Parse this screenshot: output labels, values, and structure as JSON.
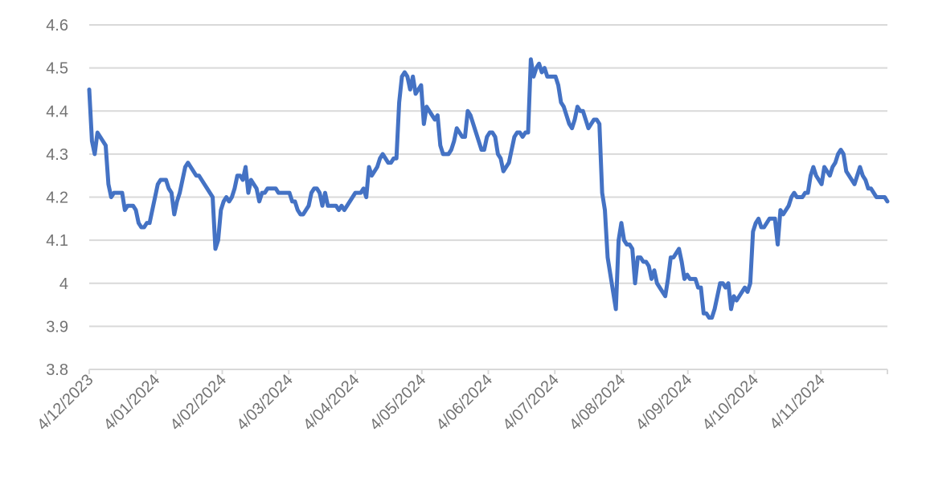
{
  "chart_data": {
    "type": "line",
    "title": "",
    "xlabel": "",
    "ylabel": "",
    "ylim": [
      3.8,
      4.6
    ],
    "y_ticks": [
      "3.8",
      "3.9",
      "4",
      "4.1",
      "4.2",
      "4.3",
      "4.4",
      "4.5",
      "4.6"
    ],
    "x_ticks": [
      "4/12/2023",
      "4/01/2024",
      "4/02/2024",
      "4/03/2024",
      "4/04/2024",
      "4/05/2024",
      "4/06/2024",
      "4/07/2024",
      "4/08/2024",
      "4/09/2024",
      "4/10/2024",
      "4/11/2024"
    ],
    "grid": "horizontal",
    "legend": "none",
    "color": "#4472c4",
    "series": [
      {
        "values": [
          4.45,
          4.33,
          4.3,
          4.35,
          4.34,
          4.33,
          4.32,
          4.23,
          4.2,
          4.21,
          4.21,
          4.21,
          4.21,
          4.17,
          4.18,
          4.18,
          4.18,
          4.17,
          4.14,
          4.13,
          4.13,
          4.14,
          4.14,
          4.17,
          4.2,
          4.23,
          4.24,
          4.24,
          4.24,
          4.22,
          4.21,
          4.16,
          4.19,
          4.21,
          4.24,
          4.27,
          4.28,
          4.27,
          4.26,
          4.25,
          4.25,
          4.24,
          4.23,
          4.22,
          4.21,
          4.2,
          4.08,
          4.1,
          4.17,
          4.19,
          4.2,
          4.19,
          4.2,
          4.22,
          4.25,
          4.25,
          4.24,
          4.27,
          4.21,
          4.24,
          4.23,
          4.22,
          4.19,
          4.21,
          4.21,
          4.22,
          4.22,
          4.22,
          4.22,
          4.21,
          4.21,
          4.21,
          4.21,
          4.21,
          4.19,
          4.19,
          4.17,
          4.16,
          4.16,
          4.17,
          4.18,
          4.21,
          4.22,
          4.22,
          4.21,
          4.18,
          4.21,
          4.18,
          4.18,
          4.18,
          4.18,
          4.17,
          4.18,
          4.17,
          4.18,
          4.19,
          4.2,
          4.21,
          4.21,
          4.21,
          4.22,
          4.2,
          4.27,
          4.25,
          4.26,
          4.27,
          4.29,
          4.3,
          4.29,
          4.28,
          4.28,
          4.29,
          4.29,
          4.42,
          4.48,
          4.49,
          4.48,
          4.45,
          4.48,
          4.44,
          4.45,
          4.46,
          4.37,
          4.41,
          4.4,
          4.39,
          4.38,
          4.39,
          4.32,
          4.3,
          4.3,
          4.3,
          4.31,
          4.33,
          4.36,
          4.35,
          4.34,
          4.34,
          4.4,
          4.39,
          4.37,
          4.35,
          4.33,
          4.31,
          4.31,
          4.34,
          4.35,
          4.35,
          4.34,
          4.3,
          4.29,
          4.26,
          4.27,
          4.28,
          4.31,
          4.34,
          4.35,
          4.35,
          4.34,
          4.35,
          4.35,
          4.52,
          4.48,
          4.5,
          4.51,
          4.49,
          4.5,
          4.48,
          4.48,
          4.48,
          4.48,
          4.46,
          4.42,
          4.41,
          4.39,
          4.37,
          4.36,
          4.38,
          4.41,
          4.4,
          4.4,
          4.38,
          4.36,
          4.37,
          4.38,
          4.38,
          4.37,
          4.21,
          4.17,
          4.06,
          4.02,
          3.98,
          3.94,
          4.1,
          4.14,
          4.1,
          4.09,
          4.09,
          4.08,
          4.0,
          4.06,
          4.06,
          4.05,
          4.05,
          4.04,
          4.01,
          4.03,
          4.0,
          3.99,
          3.98,
          3.97,
          4.01,
          4.06,
          4.06,
          4.07,
          4.08,
          4.05,
          4.01,
          4.02,
          4.01,
          4.01,
          4.01,
          3.99,
          3.99,
          3.93,
          3.93,
          3.92,
          3.92,
          3.94,
          3.97,
          4.0,
          4.0,
          3.99,
          4.0,
          3.94,
          3.97,
          3.96,
          3.97,
          3.98,
          3.99,
          3.98,
          4.0,
          4.12,
          4.14,
          4.15,
          4.13,
          4.13,
          4.14,
          4.15,
          4.15,
          4.15,
          4.09,
          4.17,
          4.16,
          4.17,
          4.18,
          4.2,
          4.21,
          4.2,
          4.2,
          4.2,
          4.21,
          4.21,
          4.25,
          4.27,
          4.25,
          4.24,
          4.23,
          4.27,
          4.26,
          4.25,
          4.27,
          4.28,
          4.3,
          4.31,
          4.3,
          4.26,
          4.25,
          4.24,
          4.23,
          4.25,
          4.27,
          4.25,
          4.24,
          4.22,
          4.22,
          4.21,
          4.2,
          4.2,
          4.2,
          4.2,
          4.19
        ]
      }
    ]
  }
}
